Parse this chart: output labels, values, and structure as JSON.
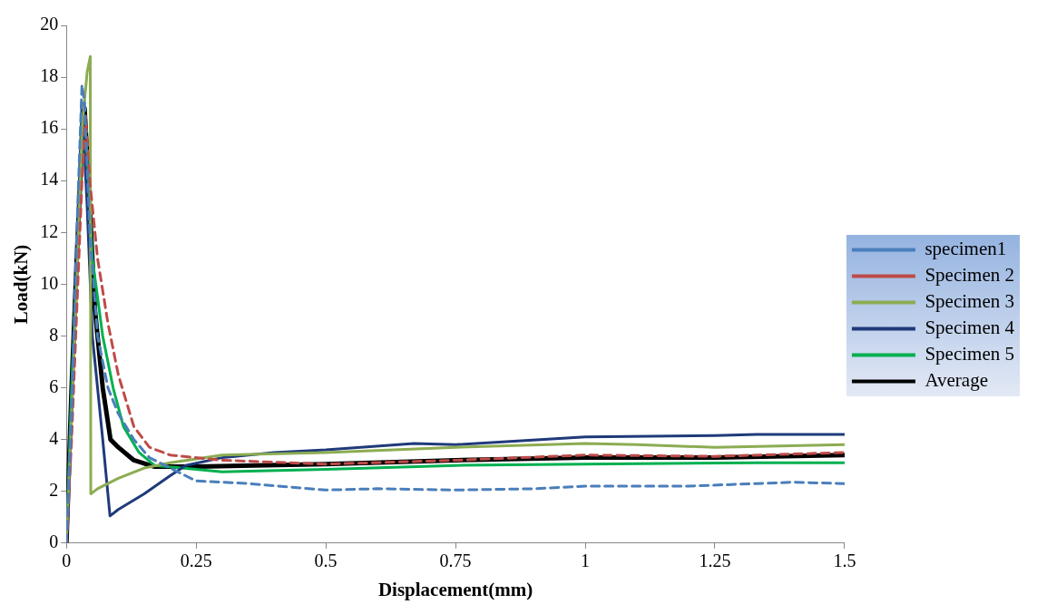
{
  "chart_data": {
    "type": "line",
    "xlabel": "Displacement(mm)",
    "ylabel": "Load(kN)",
    "xlim": [
      0,
      1.5
    ],
    "xticks": [
      0,
      0.25,
      0.5,
      0.75,
      1,
      1.25,
      1.5
    ],
    "ylim": [
      0,
      20
    ],
    "yticks": [
      0,
      2,
      4,
      6,
      8,
      10,
      12,
      14,
      16,
      18,
      20
    ],
    "grid": false,
    "legend": "right",
    "marker": "none",
    "series": [
      {
        "name": "specimen1",
        "color": "#4a7ebb",
        "line_style": "dashed",
        "x": [
          0,
          0.01,
          0.02,
          0.03,
          0.035,
          0.045,
          0.06,
          0.08,
          0.1,
          0.13,
          0.16,
          0.2,
          0.25,
          0.35,
          0.5,
          0.6,
          0.75,
          0.9,
          1.0,
          1.2,
          1.33,
          1.4,
          1.5
        ],
        "values": [
          0,
          5,
          12,
          17.7,
          17,
          12,
          8,
          6,
          5,
          4,
          3.3,
          2.9,
          2.4,
          2.3,
          2.05,
          2.1,
          2.05,
          2.1,
          2.2,
          2.2,
          2.3,
          2.35,
          2.3
        ]
      },
      {
        "name": "Specimen 2",
        "color": "#be4b48",
        "line_style": "dashed",
        "x": [
          0,
          0.01,
          0.02,
          0.03,
          0.037,
          0.045,
          0.06,
          0.08,
          0.1,
          0.13,
          0.16,
          0.2,
          0.3,
          0.5,
          0.75,
          1.0,
          1.25,
          1.5
        ],
        "values": [
          0,
          4,
          9,
          14,
          16.5,
          14,
          11,
          8.5,
          6.5,
          4.5,
          3.7,
          3.4,
          3.2,
          3.05,
          3.2,
          3.4,
          3.35,
          3.5
        ]
      },
      {
        "name": "Specimen 3",
        "color": "#8cac52",
        "line_style": "solid",
        "x": [
          0,
          0.01,
          0.02,
          0.03,
          0.04,
          0.046,
          0.047,
          0.06,
          0.1,
          0.15,
          0.2,
          0.3,
          0.5,
          0.75,
          1.0,
          1.1,
          1.25,
          1.5
        ],
        "values": [
          0,
          5,
          10,
          16,
          18.2,
          18.8,
          1.9,
          2.1,
          2.5,
          2.9,
          3.1,
          3.4,
          3.5,
          3.7,
          3.85,
          3.8,
          3.7,
          3.8
        ]
      },
      {
        "name": "Specimen 4",
        "color": "#1f3a7a",
        "line_style": "solid",
        "x": [
          0,
          0.01,
          0.02,
          0.03,
          0.04,
          0.05,
          0.07,
          0.084,
          0.1,
          0.15,
          0.2,
          0.23,
          0.3,
          0.4,
          0.5,
          0.67,
          0.75,
          1.0,
          1.25,
          1.33,
          1.5
        ],
        "values": [
          0,
          5,
          11,
          17,
          13,
          8,
          4,
          1.05,
          1.3,
          1.9,
          2.6,
          3.0,
          3.3,
          3.5,
          3.6,
          3.85,
          3.8,
          4.1,
          4.15,
          4.2,
          4.2
        ]
      },
      {
        "name": "Specimen 5",
        "color": "#00b050",
        "line_style": "solid",
        "x": [
          0,
          0.01,
          0.02,
          0.03,
          0.038,
          0.05,
          0.07,
          0.09,
          0.11,
          0.14,
          0.17,
          0.25,
          0.3,
          0.5,
          0.75,
          1.0,
          1.33,
          1.5
        ],
        "values": [
          0,
          6,
          11,
          15,
          15.5,
          11,
          8,
          6,
          4.5,
          3.5,
          3.0,
          2.85,
          2.75,
          2.85,
          3.0,
          3.05,
          3.1,
          3.1
        ]
      },
      {
        "name": "Average",
        "color": "#000000",
        "line_style": "solid",
        "x": [
          0,
          0.01,
          0.02,
          0.03,
          0.035,
          0.045,
          0.055,
          0.07,
          0.085,
          0.1,
          0.13,
          0.17,
          0.25,
          0.5,
          0.75,
          1.0,
          1.25,
          1.5
        ],
        "values": [
          0,
          6,
          11,
          15.5,
          16.8,
          13,
          9,
          6,
          4,
          3.7,
          3.2,
          2.95,
          2.95,
          3.05,
          3.2,
          3.3,
          3.3,
          3.4
        ]
      }
    ]
  }
}
